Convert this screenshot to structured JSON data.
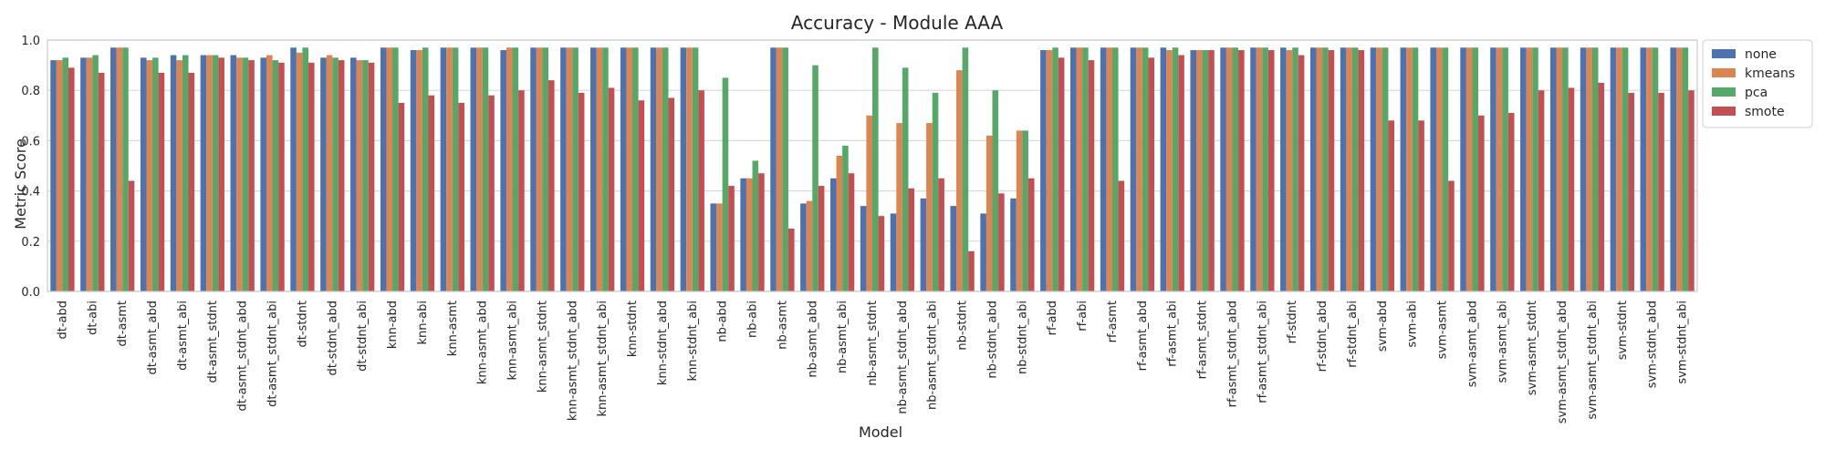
{
  "chart_data": {
    "type": "bar",
    "title": "Accuracy - Module AAA",
    "xlabel": "Model",
    "ylabel": "Metric Score",
    "ylim": [
      0,
      1.0
    ],
    "yticks": [
      0.0,
      0.2,
      0.4,
      0.6,
      0.8,
      1.0
    ],
    "ytick_labels": [
      "0.0",
      "0.2",
      "0.4",
      "0.6",
      "0.8",
      "1.0"
    ],
    "grid": true,
    "legend": "outside-top-right",
    "categories": [
      "dt-abd",
      "dt-abi",
      "dt-asmt",
      "dt-asmt_abd",
      "dt-asmt_abi",
      "dt-asmt_stdnt",
      "dt-asmt_stdnt_abd",
      "dt-asmt_stdnt_abi",
      "dt-stdnt",
      "dt-stdnt_abd",
      "dt-stdnt_abi",
      "knn-abd",
      "knn-abi",
      "knn-asmt",
      "knn-asmt_abd",
      "knn-asmt_abi",
      "knn-asmt_stdnt",
      "knn-asmt_stdnt_abd",
      "knn-asmt_stdnt_abi",
      "knn-stdnt",
      "knn-stdnt_abd",
      "knn-stdnt_abi",
      "nb-abd",
      "nb-abi",
      "nb-asmt",
      "nb-asmt_abd",
      "nb-asmt_abi",
      "nb-asmt_stdnt",
      "nb-asmt_stdnt_abd",
      "nb-asmt_stdnt_abi",
      "nb-stdnt",
      "nb-stdnt_abd",
      "nb-stdnt_abi",
      "rf-abd",
      "rf-abi",
      "rf-asmt",
      "rf-asmt_abd",
      "rf-asmt_abi",
      "rf-asmt_stdnt",
      "rf-asmt_stdnt_abd",
      "rf-asmt_stdnt_abi",
      "rf-stdnt",
      "rf-stdnt_abd",
      "rf-stdnt_abi",
      "svm-abd",
      "svm-abi",
      "svm-asmt",
      "svm-asmt_abd",
      "svm-asmt_abi",
      "svm-asmt_stdnt",
      "svm-asmt_stdnt_abd",
      "svm-asmt_stdnt_abi",
      "svm-stdnt",
      "svm-stdnt_abd",
      "svm-stdnt_abi"
    ],
    "series": [
      {
        "name": "none",
        "color": "#4c72b0",
        "values": [
          0.92,
          0.93,
          0.97,
          0.93,
          0.94,
          0.94,
          0.94,
          0.93,
          0.97,
          0.93,
          0.93,
          0.97,
          0.96,
          0.97,
          0.97,
          0.96,
          0.97,
          0.97,
          0.97,
          0.97,
          0.97,
          0.97,
          0.35,
          0.45,
          0.97,
          0.35,
          0.45,
          0.34,
          0.31,
          0.37,
          0.34,
          0.31,
          0.37,
          0.96,
          0.97,
          0.97,
          0.97,
          0.97,
          0.96,
          0.97,
          0.97,
          0.97,
          0.97,
          0.97,
          0.97,
          0.97,
          0.97,
          0.97,
          0.97,
          0.97,
          0.97,
          0.97,
          0.97,
          0.97,
          0.97
        ]
      },
      {
        "name": "kmeans",
        "color": "#dd8452",
        "values": [
          0.92,
          0.93,
          0.97,
          0.92,
          0.92,
          0.94,
          0.93,
          0.94,
          0.95,
          0.94,
          0.92,
          0.97,
          0.96,
          0.97,
          0.97,
          0.97,
          0.97,
          0.97,
          0.97,
          0.97,
          0.97,
          0.97,
          0.35,
          0.45,
          0.97,
          0.36,
          0.54,
          0.7,
          0.67,
          0.67,
          0.88,
          0.62,
          0.64,
          0.96,
          0.97,
          0.97,
          0.97,
          0.96,
          0.96,
          0.97,
          0.97,
          0.96,
          0.97,
          0.97,
          0.97,
          0.97,
          0.97,
          0.97,
          0.97,
          0.97,
          0.97,
          0.97,
          0.97,
          0.97,
          0.97
        ]
      },
      {
        "name": "pca",
        "color": "#55a868",
        "values": [
          0.93,
          0.94,
          0.97,
          0.93,
          0.94,
          0.94,
          0.93,
          0.92,
          0.97,
          0.93,
          0.92,
          0.97,
          0.97,
          0.97,
          0.97,
          0.97,
          0.97,
          0.97,
          0.97,
          0.97,
          0.97,
          0.97,
          0.85,
          0.52,
          0.97,
          0.9,
          0.58,
          0.97,
          0.89,
          0.79,
          0.97,
          0.8,
          0.64,
          0.97,
          0.97,
          0.97,
          0.97,
          0.97,
          0.96,
          0.97,
          0.97,
          0.97,
          0.97,
          0.97,
          0.97,
          0.97,
          0.97,
          0.97,
          0.97,
          0.97,
          0.97,
          0.97,
          0.97,
          0.97,
          0.97
        ]
      },
      {
        "name": "smote",
        "color": "#c44e52",
        "values": [
          0.89,
          0.87,
          0.44,
          0.87,
          0.87,
          0.93,
          0.92,
          0.91,
          0.91,
          0.92,
          0.91,
          0.75,
          0.78,
          0.75,
          0.78,
          0.8,
          0.84,
          0.79,
          0.81,
          0.76,
          0.77,
          0.8,
          0.42,
          0.47,
          0.25,
          0.42,
          0.47,
          0.3,
          0.41,
          0.45,
          0.16,
          0.39,
          0.45,
          0.93,
          0.92,
          0.44,
          0.93,
          0.94,
          0.96,
          0.96,
          0.96,
          0.94,
          0.96,
          0.96,
          0.68,
          0.68,
          0.44,
          0.7,
          0.71,
          0.8,
          0.81,
          0.83,
          0.79,
          0.79,
          0.8
        ]
      }
    ]
  }
}
